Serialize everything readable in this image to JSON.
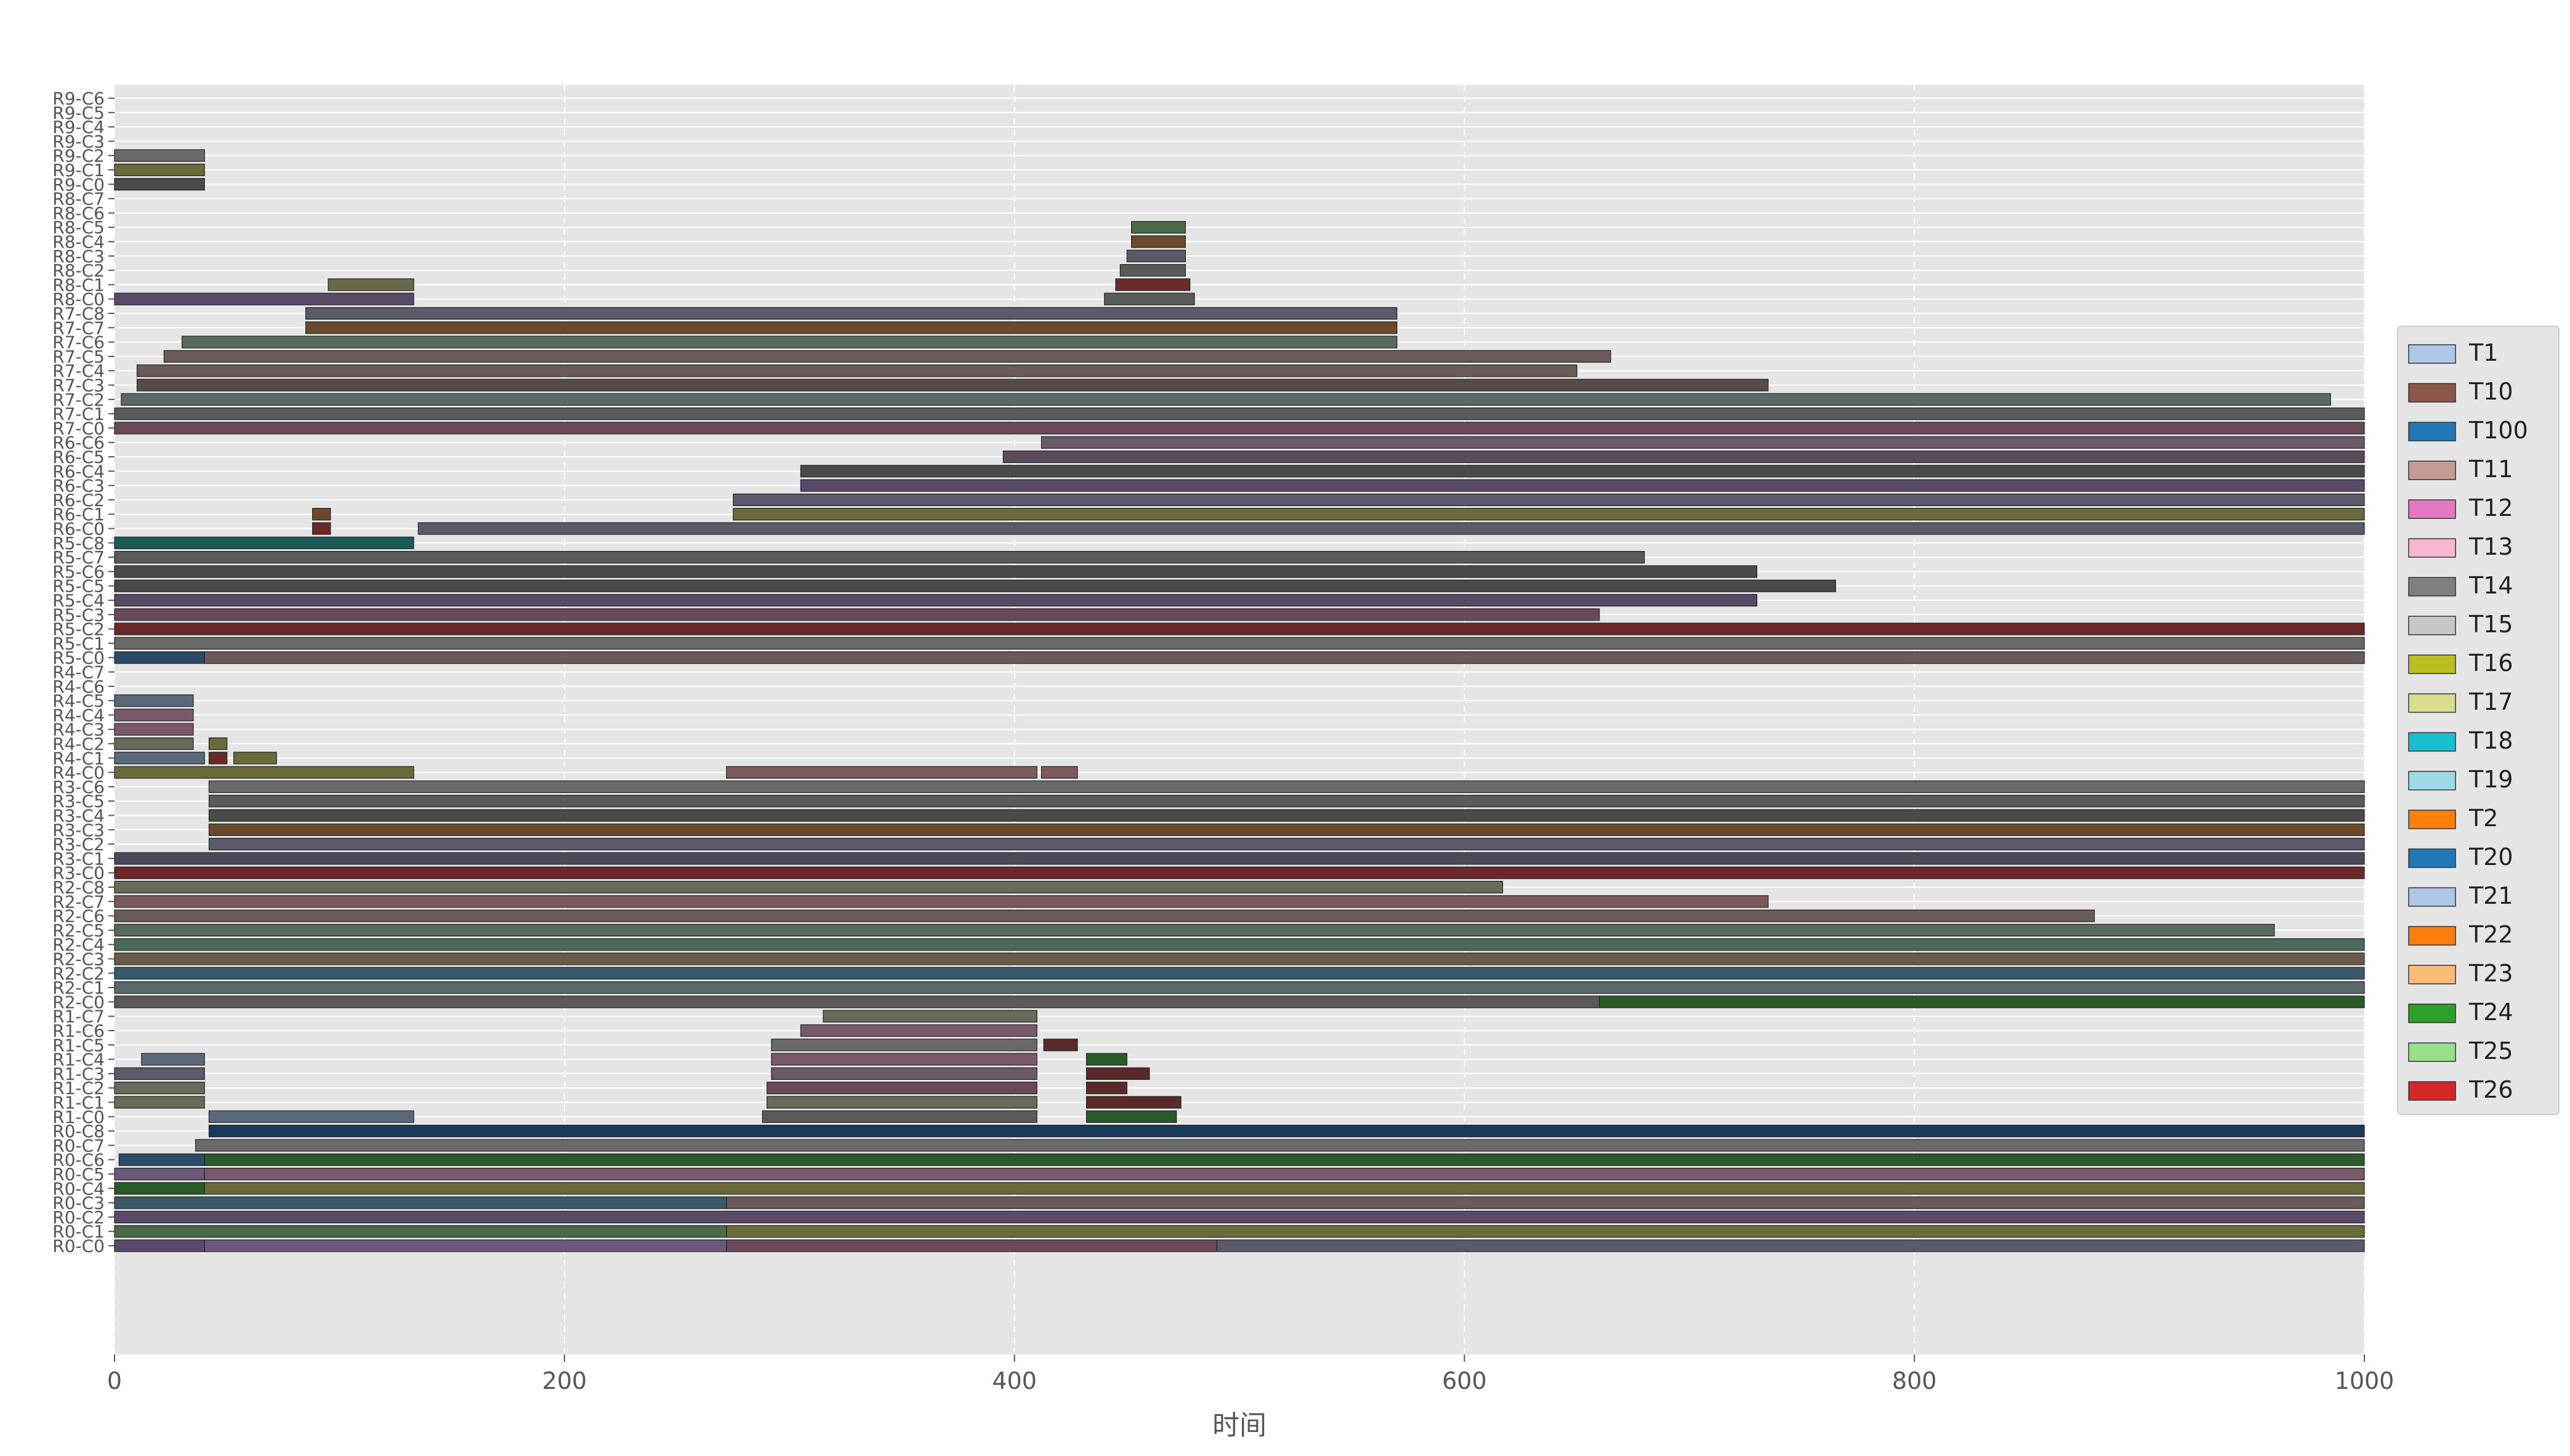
{
  "chart_data": {
    "type": "gantt",
    "title": "",
    "xlabel": "时间",
    "ylabel": "",
    "xlim": [
      0,
      1000
    ],
    "xticks": [
      0,
      200,
      400,
      600,
      800,
      1000
    ],
    "grid": true,
    "legend_position": "right",
    "legend": [
      "T1",
      "T10",
      "T100",
      "T11",
      "T12",
      "T13",
      "T14",
      "T15",
      "T16",
      "T17",
      "T18",
      "T19",
      "T2",
      "T20",
      "T21",
      "T22",
      "T23",
      "T24",
      "T25",
      "T26"
    ],
    "legend_colors": [
      "#aec7e8",
      "#8c564b",
      "#1f77b4",
      "#c49c94",
      "#e377c2",
      "#f7b6d2",
      "#7f7f7f",
      "#c7c7c7",
      "#bcbd22",
      "#dbdb8d",
      "#17becf",
      "#9edae5",
      "#ff7f0e",
      "#1f77b4",
      "#aec7e8",
      "#ff7f0e",
      "#ffbb78",
      "#2ca02c",
      "#98df8a",
      "#d62728"
    ],
    "rows": [
      "R0-C0",
      "R0-C1",
      "R0-C2",
      "R0-C3",
      "R0-C4",
      "R0-C5",
      "R0-C6",
      "R0-C7",
      "R0-C8",
      "R1-C0",
      "R1-C1",
      "R1-C2",
      "R1-C3",
      "R1-C4",
      "R1-C5",
      "R1-C6",
      "R1-C7",
      "R2-C0",
      "R2-C1",
      "R2-C2",
      "R2-C3",
      "R2-C4",
      "R2-C5",
      "R2-C6",
      "R2-C7",
      "R2-C8",
      "R3-C0",
      "R3-C1",
      "R3-C2",
      "R3-C3",
      "R3-C4",
      "R3-C5",
      "R3-C6",
      "R4-C0",
      "R4-C1",
      "R4-C2",
      "R4-C3",
      "R4-C4",
      "R4-C5",
      "R4-C6",
      "R4-C7",
      "R5-C0",
      "R5-C1",
      "R5-C2",
      "R5-C3",
      "R5-C4",
      "R5-C5",
      "R5-C6",
      "R5-C7",
      "R5-C8",
      "R6-C0",
      "R6-C1",
      "R6-C2",
      "R6-C3",
      "R6-C4",
      "R6-C5",
      "R6-C6",
      "R7-C0",
      "R7-C1",
      "R7-C2",
      "R7-C3",
      "R7-C4",
      "R7-C5",
      "R7-C6",
      "R7-C7",
      "R7-C8",
      "R8-C0",
      "R8-C1",
      "R8-C2",
      "R8-C3",
      "R8-C4",
      "R8-C5",
      "R8-C6",
      "R8-C7",
      "R9-C0",
      "R9-C1",
      "R9-C2",
      "R9-C3",
      "R9-C4",
      "R9-C5",
      "R9-C6"
    ],
    "segments": [
      {
        "row": "R0-C0",
        "start": 0,
        "end": 40,
        "color": "#5a4a6a"
      },
      {
        "row": "R0-C0",
        "start": 40,
        "end": 272,
        "color": "#6a5a7a"
      },
      {
        "row": "R0-C0",
        "start": 272,
        "end": 490,
        "color": "#6a4a5a"
      },
      {
        "row": "R0-C0",
        "start": 490,
        "end": 1000,
        "color": "#5a5a6a"
      },
      {
        "row": "R0-C1",
        "start": 0,
        "end": 272,
        "color": "#4a6a4a"
      },
      {
        "row": "R0-C1",
        "start": 272,
        "end": 1000,
        "color": "#6a6a3a"
      },
      {
        "row": "R0-C2",
        "start": 0,
        "end": 1000,
        "color": "#5a4a6a"
      },
      {
        "row": "R0-C3",
        "start": 0,
        "end": 272,
        "color": "#3a5a6a"
      },
      {
        "row": "R0-C3",
        "start": 272,
        "end": 1000,
        "color": "#6a5a5a"
      },
      {
        "row": "R0-C4",
        "start": 0,
        "end": 40,
        "color": "#2a5a2a"
      },
      {
        "row": "R0-C4",
        "start": 40,
        "end": 1000,
        "color": "#6a6a3a"
      },
      {
        "row": "R0-C5",
        "start": 0,
        "end": 40,
        "color": "#6a5a7a"
      },
      {
        "row": "R0-C5",
        "start": 40,
        "end": 1000,
        "color": "#7a5a6a"
      },
      {
        "row": "R0-C6",
        "start": 2,
        "end": 40,
        "color": "#2a4a6a"
      },
      {
        "row": "R0-C6",
        "start": 40,
        "end": 1000,
        "color": "#2a5a2a"
      },
      {
        "row": "R0-C7",
        "start": 36,
        "end": 1000,
        "color": "#6a6a6a"
      },
      {
        "row": "R0-C8",
        "start": 42,
        "end": 1000,
        "color": "#1a3a5a"
      },
      {
        "row": "R1-C0",
        "start": 42,
        "end": 133,
        "color": "#5a6a7a"
      },
      {
        "row": "R1-C0",
        "start": 288,
        "end": 410,
        "color": "#5a5a5a"
      },
      {
        "row": "R1-C0",
        "start": 432,
        "end": 472,
        "color": "#2a5a2a"
      },
      {
        "row": "R1-C1",
        "start": 0,
        "end": 40,
        "color": "#6a6a5a"
      },
      {
        "row": "R1-C1",
        "start": 290,
        "end": 410,
        "color": "#6a6a5a"
      },
      {
        "row": "R1-C1",
        "start": 432,
        "end": 474,
        "color": "#5a2a2a"
      },
      {
        "row": "R1-C2",
        "start": 0,
        "end": 40,
        "color": "#6a6a5a"
      },
      {
        "row": "R1-C2",
        "start": 290,
        "end": 410,
        "color": "#6a4a5a"
      },
      {
        "row": "R1-C2",
        "start": 432,
        "end": 450,
        "color": "#5a2a2a"
      },
      {
        "row": "R1-C3",
        "start": 0,
        "end": 40,
        "color": "#5a5a6a"
      },
      {
        "row": "R1-C3",
        "start": 292,
        "end": 410,
        "color": "#6a5a6a"
      },
      {
        "row": "R1-C3",
        "start": 432,
        "end": 460,
        "color": "#5a2a2a"
      },
      {
        "row": "R1-C4",
        "start": 12,
        "end": 40,
        "color": "#5a6a7a"
      },
      {
        "row": "R1-C4",
        "start": 292,
        "end": 410,
        "color": "#7a5a6a"
      },
      {
        "row": "R1-C4",
        "start": 432,
        "end": 450,
        "color": "#2a5a2a"
      },
      {
        "row": "R1-C5",
        "start": 292,
        "end": 410,
        "color": "#6a6a6a"
      },
      {
        "row": "R1-C5",
        "start": 413,
        "end": 428,
        "color": "#5a2a2a"
      },
      {
        "row": "R1-C6",
        "start": 305,
        "end": 410,
        "color": "#7a5a6a"
      },
      {
        "row": "R1-C7",
        "start": 315,
        "end": 410,
        "color": "#6a6a5a"
      },
      {
        "row": "R2-C0",
        "start": 0,
        "end": 660,
        "color": "#5a5a5a"
      },
      {
        "row": "R2-C0",
        "start": 660,
        "end": 1000,
        "color": "#2a5a2a"
      },
      {
        "row": "R2-C1",
        "start": 0,
        "end": 1000,
        "color": "#5a6a6a"
      },
      {
        "row": "R2-C2",
        "start": 0,
        "end": 1000,
        "color": "#3a5a6a"
      },
      {
        "row": "R2-C3",
        "start": 0,
        "end": 1000,
        "color": "#6a5a4a"
      },
      {
        "row": "R2-C4",
        "start": 0,
        "end": 1000,
        "color": "#4a6a5a"
      },
      {
        "row": "R2-C5",
        "start": 0,
        "end": 960,
        "color": "#5a6a5a"
      },
      {
        "row": "R2-C6",
        "start": 0,
        "end": 880,
        "color": "#6a5a5a"
      },
      {
        "row": "R2-C7",
        "start": 0,
        "end": 735,
        "color": "#7a5a5a"
      },
      {
        "row": "R2-C8",
        "start": 0,
        "end": 617,
        "color": "#6a6a5a"
      },
      {
        "row": "R3-C0",
        "start": 0,
        "end": 1000,
        "color": "#6a2a2a"
      },
      {
        "row": "R3-C1",
        "start": 0,
        "end": 1000,
        "color": "#4a4a5a"
      },
      {
        "row": "R3-C2",
        "start": 42,
        "end": 1000,
        "color": "#5a5a6a"
      },
      {
        "row": "R3-C3",
        "start": 42,
        "end": 1000,
        "color": "#6a4a2a"
      },
      {
        "row": "R3-C4",
        "start": 42,
        "end": 1000,
        "color": "#4a4a4a"
      },
      {
        "row": "R3-C5",
        "start": 42,
        "end": 1000,
        "color": "#5a5a5a"
      },
      {
        "row": "R3-C6",
        "start": 42,
        "end": 1000,
        "color": "#6a6a6a"
      },
      {
        "row": "R4-C0",
        "start": 0,
        "end": 133,
        "color": "#6a6a3a"
      },
      {
        "row": "R4-C0",
        "start": 272,
        "end": 410,
        "color": "#7a5a5a"
      },
      {
        "row": "R4-C0",
        "start": 412,
        "end": 428,
        "color": "#7a5a5a"
      },
      {
        "row": "R4-C1",
        "start": 0,
        "end": 40,
        "color": "#5a6a7a"
      },
      {
        "row": "R4-C1",
        "start": 42,
        "end": 50,
        "color": "#6a2a2a"
      },
      {
        "row": "R4-C1",
        "start": 53,
        "end": 72,
        "color": "#6a6a3a"
      },
      {
        "row": "R4-C2",
        "start": 0,
        "end": 35,
        "color": "#6a6a5a"
      },
      {
        "row": "R4-C2",
        "start": 42,
        "end": 50,
        "color": "#6a6a3a"
      },
      {
        "row": "R4-C3",
        "start": 0,
        "end": 35,
        "color": "#7a5a6a"
      },
      {
        "row": "R4-C4",
        "start": 0,
        "end": 35,
        "color": "#7a5a6a"
      },
      {
        "row": "R4-C5",
        "start": 0,
        "end": 35,
        "color": "#5a6a7a"
      },
      {
        "row": "R5-C0",
        "start": 0,
        "end": 40,
        "color": "#2a4a6a"
      },
      {
        "row": "R5-C0",
        "start": 40,
        "end": 1000,
        "color": "#6a5a5a"
      },
      {
        "row": "R5-C1",
        "start": 0,
        "end": 1000,
        "color": "#6a6a6a"
      },
      {
        "row": "R5-C2",
        "start": 0,
        "end": 1000,
        "color": "#6a2a2a"
      },
      {
        "row": "R5-C3",
        "start": 0,
        "end": 660,
        "color": "#6a4a5a"
      },
      {
        "row": "R5-C4",
        "start": 0,
        "end": 730,
        "color": "#5a4a6a"
      },
      {
        "row": "R5-C5",
        "start": 0,
        "end": 765,
        "color": "#4a4a4a"
      },
      {
        "row": "R5-C6",
        "start": 0,
        "end": 730,
        "color": "#4a4a4a"
      },
      {
        "row": "R5-C7",
        "start": 0,
        "end": 680,
        "color": "#5a5a5a"
      },
      {
        "row": "R5-C8",
        "start": 0,
        "end": 133,
        "color": "#1a5a5a"
      },
      {
        "row": "R6-C0",
        "start": 88,
        "end": 96,
        "color": "#6a2a2a"
      },
      {
        "row": "R6-C0",
        "start": 135,
        "end": 1000,
        "color": "#5a5a6a"
      },
      {
        "row": "R6-C1",
        "start": 88,
        "end": 96,
        "color": "#6a4a2a"
      },
      {
        "row": "R6-C1",
        "start": 275,
        "end": 1000,
        "color": "#6a6a3a"
      },
      {
        "row": "R6-C2",
        "start": 275,
        "end": 1000,
        "color": "#5a5a6a"
      },
      {
        "row": "R6-C3",
        "start": 305,
        "end": 1000,
        "color": "#5a4a6a"
      },
      {
        "row": "R6-C4",
        "start": 305,
        "end": 1000,
        "color": "#4a4a4a"
      },
      {
        "row": "R6-C5",
        "start": 395,
        "end": 1000,
        "color": "#5a4a5a"
      },
      {
        "row": "R6-C6",
        "start": 412,
        "end": 1000,
        "color": "#6a5a6a"
      },
      {
        "row": "R7-C0",
        "start": 0,
        "end": 1000,
        "color": "#6a4a5a"
      },
      {
        "row": "R7-C1",
        "start": 0,
        "end": 1000,
        "color": "#5a5a5a"
      },
      {
        "row": "R7-C2",
        "start": 3,
        "end": 985,
        "color": "#5a6a6a"
      },
      {
        "row": "R7-C3",
        "start": 10,
        "end": 735,
        "color": "#5a4a4a"
      },
      {
        "row": "R7-C4",
        "start": 10,
        "end": 650,
        "color": "#6a5a5a"
      },
      {
        "row": "R7-C5",
        "start": 22,
        "end": 665,
        "color": "#6a5a5a"
      },
      {
        "row": "R7-C6",
        "start": 30,
        "end": 570,
        "color": "#5a6a5a"
      },
      {
        "row": "R7-C7",
        "start": 85,
        "end": 570,
        "color": "#6a4a2a"
      },
      {
        "row": "R7-C8",
        "start": 85,
        "end": 570,
        "color": "#5a5a6a"
      },
      {
        "row": "R8-C0",
        "start": 0,
        "end": 133,
        "color": "#5a4a6a"
      },
      {
        "row": "R8-C0",
        "start": 440,
        "end": 480,
        "color": "#5a5a5a"
      },
      {
        "row": "R8-C1",
        "start": 95,
        "end": 133,
        "color": "#6a6a4a"
      },
      {
        "row": "R8-C1",
        "start": 445,
        "end": 478,
        "color": "#6a2a2a"
      },
      {
        "row": "R8-C2",
        "start": 447,
        "end": 476,
        "color": "#5a5a5a"
      },
      {
        "row": "R8-C3",
        "start": 450,
        "end": 476,
        "color": "#5a5a6a"
      },
      {
        "row": "R8-C4",
        "start": 452,
        "end": 476,
        "color": "#6a4a2a"
      },
      {
        "row": "R8-C5",
        "start": 452,
        "end": 476,
        "color": "#4a6a4a"
      },
      {
        "row": "R9-C0",
        "start": 0,
        "end": 40,
        "color": "#4a4a4a"
      },
      {
        "row": "R9-C1",
        "start": 0,
        "end": 40,
        "color": "#6a6a3a"
      },
      {
        "row": "R9-C2",
        "start": 0,
        "end": 40,
        "color": "#6a6a6a"
      }
    ]
  }
}
